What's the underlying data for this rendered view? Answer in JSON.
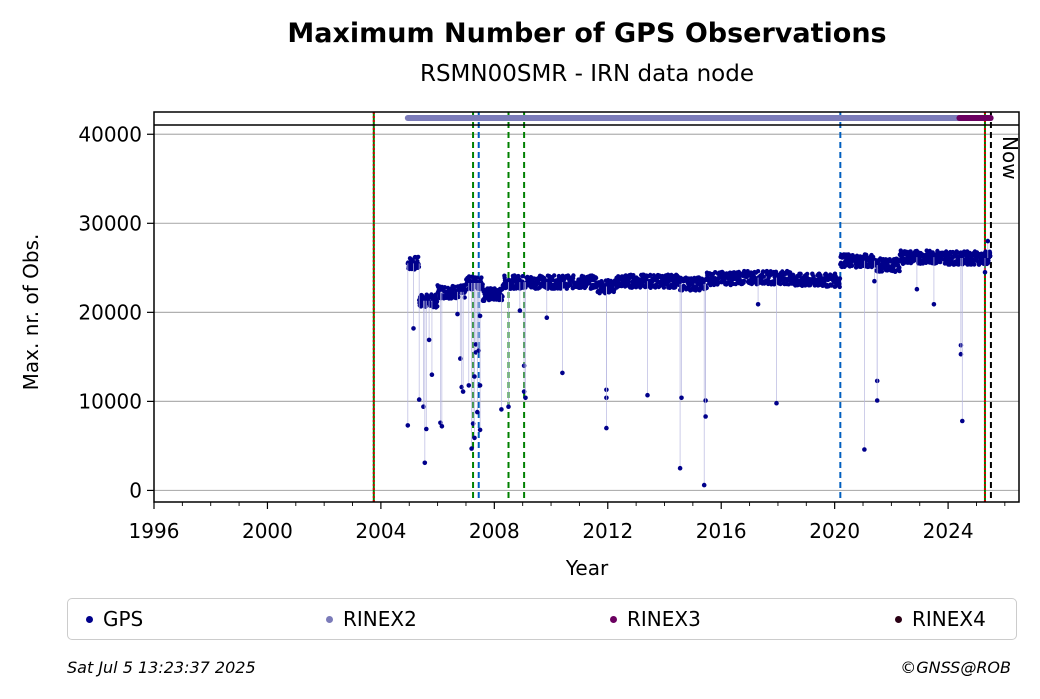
{
  "chart_data": {
    "type": "scatter",
    "title": "Maximum Number of GPS Observations",
    "subtitle": "RSMN00SMR - IRN data node",
    "xlabel": "Year",
    "ylabel": "Max. nr. of Obs.",
    "xlim": [
      1996,
      2026.5
    ],
    "ylim": [
      -1300,
      42500
    ],
    "x_ticks": [
      "1996",
      "2000",
      "2004",
      "2008",
      "2012",
      "2016",
      "2020",
      "2024"
    ],
    "y_ticks": [
      "0",
      "10000",
      "20000",
      "30000",
      "40000"
    ],
    "grid": "horizontal",
    "now_label": "Now",
    "vlines": [
      {
        "x": 2003.75,
        "color": "#008000",
        "style": "solid"
      },
      {
        "x": 2003.75,
        "color": "#cc0000",
        "style": "dotted"
      },
      {
        "x": 2007.25,
        "color": "#008000",
        "style": "dashed"
      },
      {
        "x": 2007.45,
        "color": "#005fbf",
        "style": "dashed"
      },
      {
        "x": 2008.5,
        "color": "#008000",
        "style": "dashed"
      },
      {
        "x": 2009.05,
        "color": "#008000",
        "style": "dashed"
      },
      {
        "x": 2020.2,
        "color": "#005fbf",
        "style": "dashed"
      },
      {
        "x": 2025.3,
        "color": "#008000",
        "style": "solid"
      },
      {
        "x": 2025.3,
        "color": "#cc0000",
        "style": "dotted"
      },
      {
        "x": 2025.51,
        "color": "#000000",
        "style": "dashed"
      }
    ],
    "format_bars": [
      {
        "name": "RINEX2",
        "x": [
          2004.95,
          2025.5
        ],
        "color": "#7b7bb9"
      },
      {
        "name": "RINEX3",
        "x": [
          2024.4,
          2025.5
        ],
        "color": "#6b0060"
      }
    ],
    "baseline_segments": [
      {
        "x": [
          2004.95,
          2005.35
        ],
        "y": 25500
      },
      {
        "x": [
          2005.35,
          2006.0
        ],
        "y": 21300
      },
      {
        "x": [
          2006.0,
          2007.0
        ],
        "y": 22300
      },
      {
        "x": [
          2007.0,
          2007.6
        ],
        "y": 23300
      },
      {
        "x": [
          2007.6,
          2008.3
        ],
        "y": 22000
      },
      {
        "x": [
          2008.3,
          2010.2
        ],
        "y": 23400
      },
      {
        "x": [
          2010.2,
          2011.6
        ],
        "y": 23400
      },
      {
        "x": [
          2011.6,
          2012.3
        ],
        "y": 22900
      },
      {
        "x": [
          2012.3,
          2014.5
        ],
        "y": 23500
      },
      {
        "x": [
          2014.5,
          2015.5
        ],
        "y": 23200
      },
      {
        "x": [
          2015.5,
          2016.5
        ],
        "y": 23800
      },
      {
        "x": [
          2016.5,
          2018.5
        ],
        "y": 23900
      },
      {
        "x": [
          2018.5,
          2020.2
        ],
        "y": 23600
      },
      {
        "x": [
          2020.2,
          2021.4
        ],
        "y": 25800
      },
      {
        "x": [
          2021.4,
          2022.3
        ],
        "y": 25300
      },
      {
        "x": [
          2022.3,
          2024.0
        ],
        "y": 26200
      },
      {
        "x": [
          2024.0,
          2025.5
        ],
        "y": 26100
      }
    ],
    "series": [
      {
        "name": "GPS",
        "color": "#00008b",
        "outliers": [
          {
            "x": 2004.95,
            "y": 7300
          },
          {
            "x": 2005.15,
            "y": 18200
          },
          {
            "x": 2005.35,
            "y": 10200
          },
          {
            "x": 2005.5,
            "y": 9400
          },
          {
            "x": 2005.55,
            "y": 3100
          },
          {
            "x": 2005.6,
            "y": 6900
          },
          {
            "x": 2005.7,
            "y": 16900
          },
          {
            "x": 2005.8,
            "y": 13000
          },
          {
            "x": 2006.1,
            "y": 7600
          },
          {
            "x": 2006.15,
            "y": 7200
          },
          {
            "x": 2006.7,
            "y": 19800
          },
          {
            "x": 2006.8,
            "y": 14800
          },
          {
            "x": 2006.85,
            "y": 11600
          },
          {
            "x": 2006.9,
            "y": 11100
          },
          {
            "x": 2007.1,
            "y": 11800
          },
          {
            "x": 2007.2,
            "y": 4700
          },
          {
            "x": 2007.25,
            "y": 7500
          },
          {
            "x": 2007.3,
            "y": 5900
          },
          {
            "x": 2007.3,
            "y": 12800
          },
          {
            "x": 2007.35,
            "y": 15500
          },
          {
            "x": 2007.35,
            "y": 16400
          },
          {
            "x": 2007.4,
            "y": 8800
          },
          {
            "x": 2007.45,
            "y": 15700
          },
          {
            "x": 2007.5,
            "y": 6800
          },
          {
            "x": 2007.5,
            "y": 11800
          },
          {
            "x": 2007.5,
            "y": 19600
          },
          {
            "x": 2008.25,
            "y": 9100
          },
          {
            "x": 2008.5,
            "y": 9400
          },
          {
            "x": 2008.9,
            "y": 20200
          },
          {
            "x": 2009.05,
            "y": 14000
          },
          {
            "x": 2009.05,
            "y": 11100
          },
          {
            "x": 2009.1,
            "y": 10400
          },
          {
            "x": 2009.85,
            "y": 19400
          },
          {
            "x": 2010.4,
            "y": 13200
          },
          {
            "x": 2011.95,
            "y": 11300
          },
          {
            "x": 2011.95,
            "y": 10400
          },
          {
            "x": 2011.95,
            "y": 7000
          },
          {
            "x": 2013.4,
            "y": 10700
          },
          {
            "x": 2014.55,
            "y": 2500
          },
          {
            "x": 2014.6,
            "y": 10400
          },
          {
            "x": 2015.4,
            "y": 600
          },
          {
            "x": 2015.45,
            "y": 10100
          },
          {
            "x": 2015.45,
            "y": 8300
          },
          {
            "x": 2017.3,
            "y": 20900
          },
          {
            "x": 2017.95,
            "y": 9800
          },
          {
            "x": 2021.05,
            "y": 4600
          },
          {
            "x": 2021.4,
            "y": 23500
          },
          {
            "x": 2021.5,
            "y": 12300
          },
          {
            "x": 2021.5,
            "y": 10100
          },
          {
            "x": 2022.9,
            "y": 22600
          },
          {
            "x": 2023.5,
            "y": 20900
          },
          {
            "x": 2024.45,
            "y": 16300
          },
          {
            "x": 2024.45,
            "y": 15300
          },
          {
            "x": 2024.5,
            "y": 7800
          },
          {
            "x": 2025.3,
            "y": 24500
          },
          {
            "x": 2025.4,
            "y": 28000
          }
        ]
      }
    ]
  },
  "legend": {
    "items": [
      {
        "label": "GPS",
        "color": "#00008b"
      },
      {
        "label": "RINEX2",
        "color": "#7b7bb9"
      },
      {
        "label": "RINEX3",
        "color": "#6b0060"
      },
      {
        "label": "RINEX4",
        "color": "#2a0014"
      }
    ]
  },
  "footer": {
    "timestamp": "Sat Jul  5 13:23:37 2025",
    "copyright": "©GNSS@ROB"
  }
}
